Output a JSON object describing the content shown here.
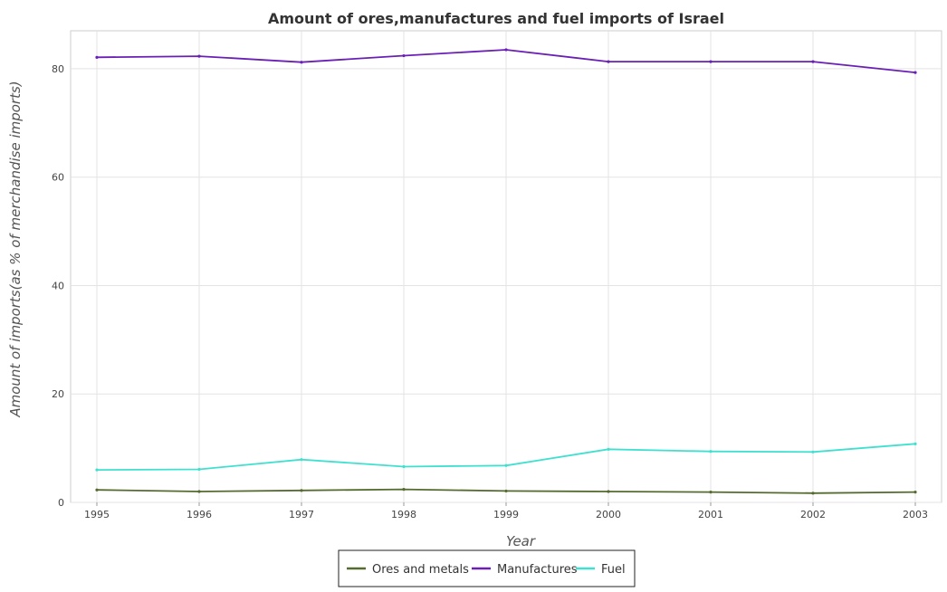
{
  "chart_data": {
    "type": "line",
    "title": "Amount of ores,manufactures and fuel imports of Israel",
    "xlabel": "Year",
    "ylabel": "Amount of imports(as % of merchandise imports)",
    "x": [
      "1995",
      "1996",
      "1997",
      "1998",
      "1999",
      "2000",
      "2001",
      "2002",
      "2003"
    ],
    "ylim": [
      0,
      87
    ],
    "yticks": [
      "0",
      "20",
      "40",
      "60",
      "80"
    ],
    "grid": true,
    "legend_position": "bottom-center",
    "series": [
      {
        "name": "Ores and metals",
        "color": "#556b2f",
        "values": [
          2.3,
          2.0,
          2.2,
          2.4,
          2.1,
          2.0,
          1.9,
          1.7,
          1.9
        ]
      },
      {
        "name": "Manufactures",
        "color": "#6a1fb5",
        "values": [
          82.1,
          82.3,
          81.2,
          82.4,
          83.5,
          81.3,
          81.3,
          81.3,
          79.3
        ]
      },
      {
        "name": "Fuel",
        "color": "#40e0d0",
        "values": [
          6.0,
          6.1,
          7.9,
          6.6,
          6.8,
          9.8,
          9.4,
          9.3,
          10.8
        ]
      }
    ]
  }
}
